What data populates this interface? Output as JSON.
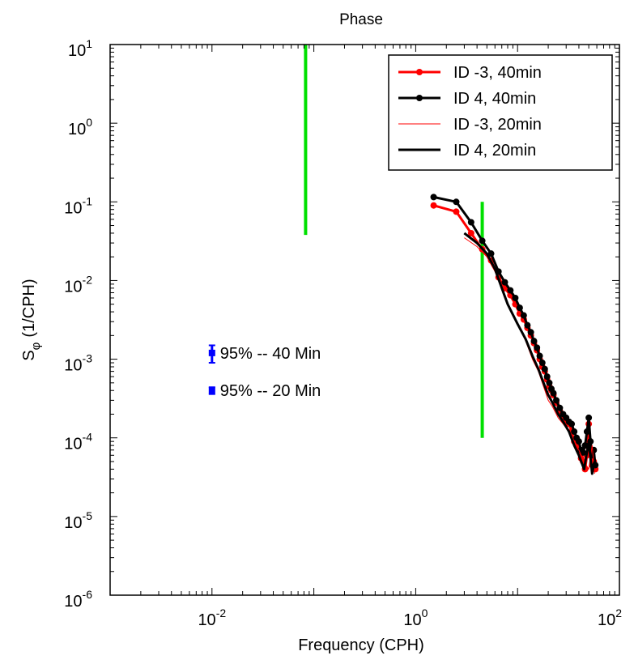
{
  "chart_data": {
    "type": "line",
    "title": "Phase",
    "xlabel": "Frequency (CPH)",
    "ylabel_main": "S",
    "ylabel_sub": "φ",
    "ylabel_unit": "(1/CPH)",
    "x_scale": "log",
    "y_scale": "log",
    "xlim": [
      0.001,
      100
    ],
    "ylim": [
      1e-06,
      10
    ],
    "x_ticks": [
      {
        "value": 0.01,
        "base": "10",
        "exp": "-2"
      },
      {
        "value": 1,
        "base": "10",
        "exp": "0"
      },
      {
        "value": 100,
        "base": "10",
        "exp": "2"
      }
    ],
    "y_ticks": [
      {
        "value": 10,
        "base": "10",
        "exp": "1"
      },
      {
        "value": 1,
        "base": "10",
        "exp": "0"
      },
      {
        "value": 0.1,
        "base": "10",
        "exp": "-1"
      },
      {
        "value": 0.01,
        "base": "10",
        "exp": "-2"
      },
      {
        "value": 0.001,
        "base": "10",
        "exp": "-3"
      },
      {
        "value": 0.0001,
        "base": "10",
        "exp": "-4"
      },
      {
        "value": 1e-05,
        "base": "10",
        "exp": "-5"
      },
      {
        "value": 1e-06,
        "base": "10",
        "exp": "-6"
      }
    ],
    "legend_position": "top-right",
    "series": [
      {
        "name": "ID -3, 40min",
        "color": "#ff0000",
        "markers": true,
        "line_width": 3,
        "points": [
          [
            1.5,
            0.09
          ],
          [
            2.5,
            0.075
          ],
          [
            3.5,
            0.04
          ],
          [
            4.5,
            0.025
          ],
          [
            5.5,
            0.018
          ],
          [
            6.5,
            0.011
          ],
          [
            7.5,
            0.008
          ],
          [
            8.5,
            0.0065
          ],
          [
            9.5,
            0.005
          ],
          [
            10.5,
            0.0038
          ],
          [
            11.5,
            0.0032
          ],
          [
            12.5,
            0.0025
          ],
          [
            13.5,
            0.002
          ],
          [
            14.5,
            0.0016
          ],
          [
            15.5,
            0.0013
          ],
          [
            16.5,
            0.001
          ],
          [
            17.5,
            0.0008
          ],
          [
            18.5,
            0.0007
          ],
          [
            19.5,
            0.00055
          ],
          [
            20.5,
            0.00045
          ],
          [
            21.5,
            0.0004
          ],
          [
            22.5,
            0.00035
          ],
          [
            24,
            0.00028
          ],
          [
            26,
            0.00022
          ],
          [
            28,
            0.00018
          ],
          [
            30,
            0.00016
          ],
          [
            32,
            0.00015
          ],
          [
            34,
            0.00012
          ],
          [
            36,
            9e-05
          ],
          [
            38,
            8e-05
          ],
          [
            40,
            7e-05
          ],
          [
            42,
            5.5e-05
          ],
          [
            44,
            5e-05
          ],
          [
            46,
            4e-05
          ],
          [
            48,
            6e-05
          ],
          [
            50,
            0.00015
          ],
          [
            52,
            7e-05
          ],
          [
            54,
            4.5e-05
          ],
          [
            56,
            5e-05
          ],
          [
            58,
            4e-05
          ]
        ]
      },
      {
        "name": "ID  4, 40min",
        "color": "#000000",
        "markers": true,
        "line_width": 3,
        "points": [
          [
            1.5,
            0.115
          ],
          [
            2.5,
            0.1
          ],
          [
            3.5,
            0.055
          ],
          [
            4.5,
            0.032
          ],
          [
            5.5,
            0.022
          ],
          [
            6.5,
            0.013
          ],
          [
            7.5,
            0.0095
          ],
          [
            8.5,
            0.0075
          ],
          [
            9.5,
            0.006
          ],
          [
            10.5,
            0.0045
          ],
          [
            11.5,
            0.0036
          ],
          [
            12.5,
            0.0027
          ],
          [
            13.5,
            0.0022
          ],
          [
            14.5,
            0.0017
          ],
          [
            15.5,
            0.0014
          ],
          [
            16.5,
            0.0011
          ],
          [
            17.5,
            0.0009
          ],
          [
            18.5,
            0.00075
          ],
          [
            19.5,
            0.0006
          ],
          [
            20.5,
            0.0005
          ],
          [
            21.5,
            0.00042
          ],
          [
            22.5,
            0.00037
          ],
          [
            24,
            0.0003
          ],
          [
            26,
            0.00024
          ],
          [
            28,
            0.0002
          ],
          [
            30,
            0.00018
          ],
          [
            32,
            0.00016
          ],
          [
            34,
            0.00015
          ],
          [
            36,
            0.00012
          ],
          [
            38,
            0.0001
          ],
          [
            40,
            9e-05
          ],
          [
            42,
            7e-05
          ],
          [
            44,
            6.5e-05
          ],
          [
            46,
            8e-05
          ],
          [
            48,
            0.00012
          ],
          [
            50,
            0.00018
          ],
          [
            52,
            9e-05
          ],
          [
            54,
            6e-05
          ],
          [
            56,
            7e-05
          ],
          [
            58,
            4.5e-05
          ]
        ]
      },
      {
        "name": "ID -3, 20min",
        "color": "#ff0000",
        "markers": false,
        "line_width": 1,
        "points": [
          [
            3,
            0.035
          ],
          [
            4,
            0.027
          ],
          [
            5,
            0.02
          ],
          [
            6,
            0.013
          ],
          [
            7,
            0.008
          ],
          [
            8,
            0.005
          ],
          [
            10,
            0.0028
          ],
          [
            12,
            0.0017
          ],
          [
            14,
            0.001
          ],
          [
            16,
            0.0007
          ],
          [
            18,
            0.00045
          ],
          [
            20,
            0.0003
          ],
          [
            22,
            0.00025
          ],
          [
            25,
            0.00018
          ],
          [
            28,
            0.00015
          ],
          [
            32,
            0.00012
          ],
          [
            36,
            9e-05
          ],
          [
            40,
            7e-05
          ],
          [
            45,
            5e-05
          ],
          [
            50,
            4e-05
          ],
          [
            54,
            8e-05
          ],
          [
            57,
            3.5e-05
          ]
        ]
      },
      {
        "name": "ID  4, 20min",
        "color": "#000000",
        "markers": false,
        "line_width": 3,
        "points": [
          [
            3,
            0.04
          ],
          [
            4,
            0.03
          ],
          [
            5,
            0.022
          ],
          [
            6,
            0.014
          ],
          [
            7,
            0.008
          ],
          [
            8,
            0.005
          ],
          [
            10,
            0.0028
          ],
          [
            12,
            0.0018
          ],
          [
            14,
            0.0011
          ],
          [
            16,
            0.00075
          ],
          [
            18,
            0.0005
          ],
          [
            20,
            0.00035
          ],
          [
            22,
            0.00028
          ],
          [
            25,
            0.0002
          ],
          [
            28,
            0.00016
          ],
          [
            32,
            0.00012
          ],
          [
            36,
            8e-05
          ],
          [
            40,
            6e-05
          ],
          [
            45,
            4e-05
          ],
          [
            50,
            9e-05
          ],
          [
            54,
            3.5e-05
          ],
          [
            57,
            5e-05
          ]
        ]
      }
    ],
    "reference_lines": [
      {
        "color": "#00e000",
        "x": 0.083,
        "y_from": 0.038,
        "y_to": 10
      },
      {
        "color": "#00e000",
        "x": 4.5,
        "y_from": 0.0001,
        "y_to": 0.1
      }
    ],
    "confidence_bars": [
      {
        "label": "95%  -- 40 Min",
        "x": 0.01,
        "y": 0.0012,
        "y_low": 0.0009,
        "y_high": 0.0015,
        "color": "#0000ff"
      },
      {
        "label": "95%  -- 20 Min",
        "x": 0.01,
        "y": 0.0004,
        "y_low": 0.00036,
        "y_high": 0.00044,
        "color": "#0000ff"
      }
    ]
  }
}
